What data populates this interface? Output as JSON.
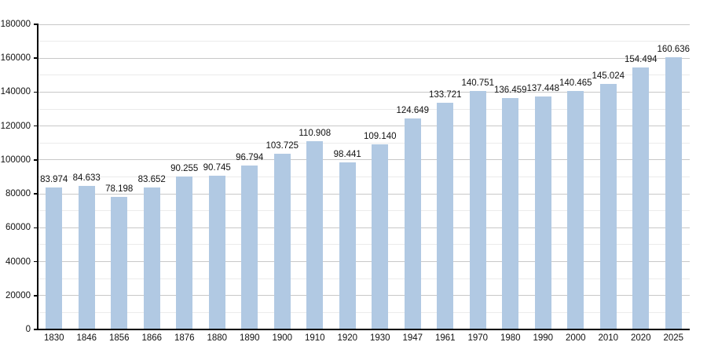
{
  "chart_data": {
    "type": "bar",
    "categories": [
      "1830",
      "1846",
      "1856",
      "1866",
      "1876",
      "1880",
      "1890",
      "1900",
      "1910",
      "1920",
      "1930",
      "1947",
      "1961",
      "1970",
      "1980",
      "1990",
      "2000",
      "2010",
      "2020",
      "2025"
    ],
    "values": [
      83974,
      84633,
      78198,
      83652,
      90255,
      90745,
      96794,
      103725,
      110908,
      98441,
      109140,
      124649,
      133721,
      140751,
      136459,
      137448,
      140465,
      145024,
      154494,
      160636
    ],
    "value_labels": [
      "83.974",
      "84.633",
      "78.198",
      "83.652",
      "90.255",
      "90.745",
      "96.794",
      "103.725",
      "110.908",
      "98.441",
      "109.140",
      "124.649",
      "133.721",
      "140.751",
      "136.459",
      "137.448",
      "140.465",
      "145.024",
      "154.494",
      "160.636"
    ],
    "xlabel": "",
    "ylabel": "",
    "ylim": [
      0,
      180000
    ],
    "y_major_step": 20000,
    "y_minor_step": 10000,
    "y_tick_labels": [
      "0",
      "20000",
      "40000",
      "60000",
      "80000",
      "100000",
      "120000",
      "140000",
      "160000",
      "180000"
    ],
    "grid": "horizontal, major and minor, on",
    "legend": "none",
    "colors": {
      "bar_fill": "#b1c9e3",
      "grid_major": "#c8c8c8",
      "grid_minor": "#ebebeb",
      "axis": "#000000",
      "text": "#111111",
      "background": "#ffffff"
    }
  }
}
